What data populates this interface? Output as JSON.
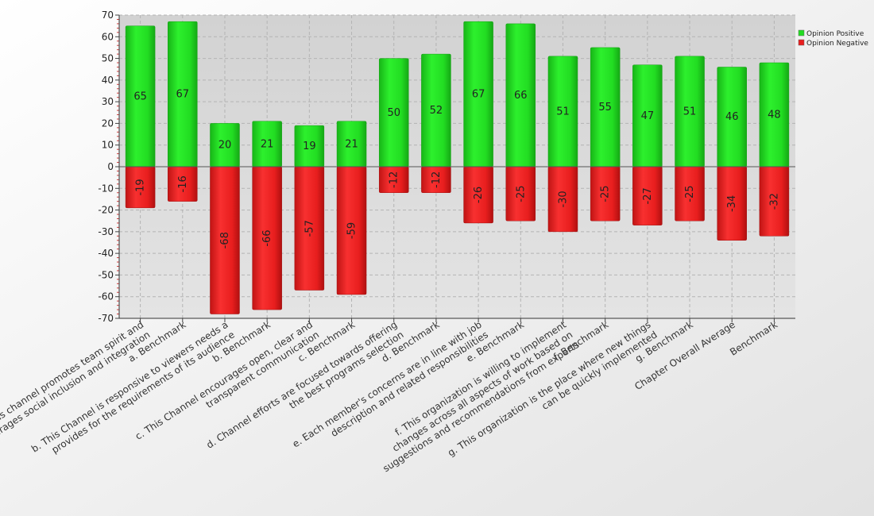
{
  "chart_data": {
    "type": "bar",
    "stacked": "diverging",
    "ylim": [
      -70,
      70
    ],
    "yticks": [
      70,
      60,
      50,
      40,
      30,
      20,
      10,
      0,
      -10,
      -20,
      -30,
      -40,
      -50,
      -60,
      -70
    ],
    "grid": true,
    "legend_position": "top-right",
    "categories": [
      [
        "a. This channel promotes team spirit and",
        "encourages social inclusion and integration"
      ],
      [
        "a. Benchmark"
      ],
      [
        "b. This Channel is responsive to viewers needs a",
        "provides for the requirements of its audience"
      ],
      [
        "b. Benchmark"
      ],
      [
        "c. This Channel encourages open, clear and",
        "transparent communication"
      ],
      [
        "c. Benchmark"
      ],
      [
        "d. Channel efforts are focused towards offering",
        "the best programs selection"
      ],
      [
        "d. Benchmark"
      ],
      [
        "e. Each member's concerns are in line with job",
        "description and related responsibilities"
      ],
      [
        "e. Benchmark"
      ],
      [
        "f. This organization  is willing to implement",
        "changes across all aspects of work based on",
        "suggestions and recommendations from experts"
      ],
      [
        "f. Benchmark"
      ],
      [
        "g. This organization is the place where new things",
        "can be quickly implemented"
      ],
      [
        "g. Benchmark"
      ],
      [
        "Chapter Overall Average"
      ],
      [
        "Benchmark"
      ]
    ],
    "series": [
      {
        "name": "Opinion Positive",
        "color": "#22dd22",
        "values": [
          65,
          67,
          20,
          21,
          19,
          21,
          50,
          52,
          67,
          66,
          51,
          55,
          47,
          51,
          46,
          48
        ]
      },
      {
        "name": "Opinion Negative",
        "color": "#e81e1e",
        "values": [
          -19,
          -16,
          -68,
          -66,
          -57,
          -59,
          -12,
          -12,
          -26,
          -25,
          -30,
          -25,
          -27,
          -25,
          -34,
          -32
        ]
      }
    ]
  }
}
